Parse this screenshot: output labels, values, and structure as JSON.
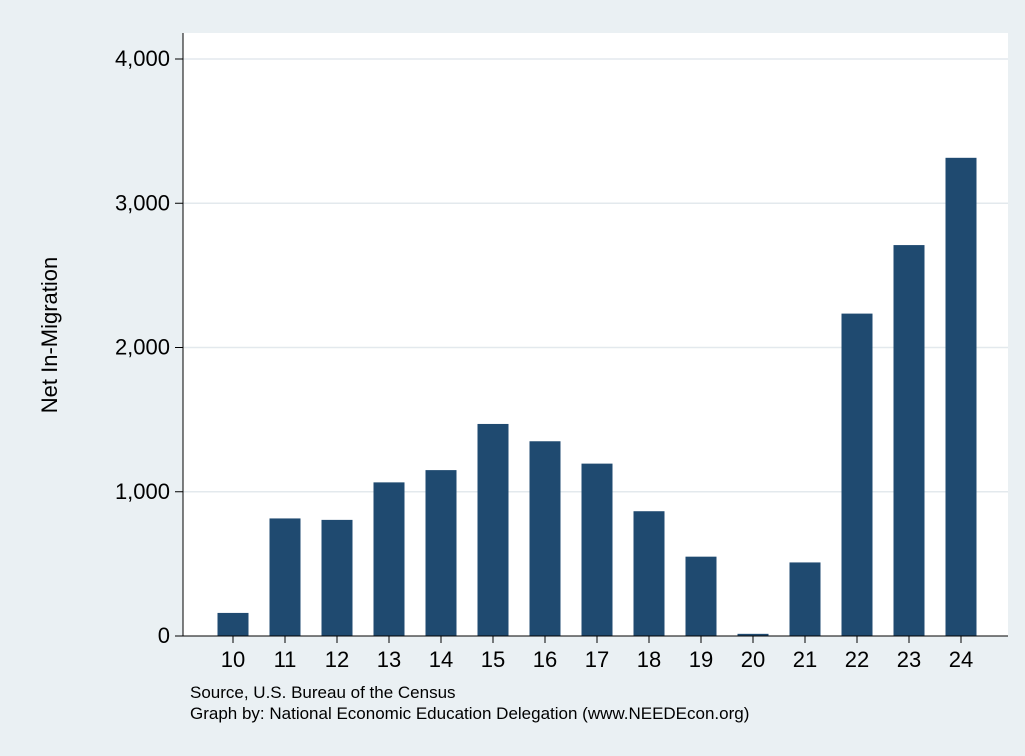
{
  "chart_data": {
    "type": "bar",
    "title": "",
    "xlabel": "",
    "ylabel": "Net In-Migration",
    "categories": [
      "10",
      "11",
      "12",
      "13",
      "14",
      "15",
      "16",
      "17",
      "18",
      "19",
      "20",
      "21",
      "22",
      "23",
      "24"
    ],
    "values": [
      160,
      815,
      805,
      1065,
      1150,
      1470,
      1350,
      1195,
      865,
      550,
      15,
      510,
      2235,
      2710,
      3315
    ],
    "ylim": [
      0,
      4000
    ],
    "yticks": [
      0,
      1000,
      2000,
      3000,
      4000
    ],
    "ytick_labels": [
      "0",
      "1,000",
      "2,000",
      "3,000",
      "4,000"
    ],
    "grid": true,
    "legend": "none",
    "colors": {
      "bar": "#1f4a70",
      "grid": "#e3e9ed",
      "plot_bg": "#ffffff",
      "page_bg": "#eaf0f3"
    },
    "notes": [
      "Source, U.S. Bureau of the Census",
      "Graph by: National Economic Education Delegation (www.NEEDEcon.org)"
    ]
  }
}
